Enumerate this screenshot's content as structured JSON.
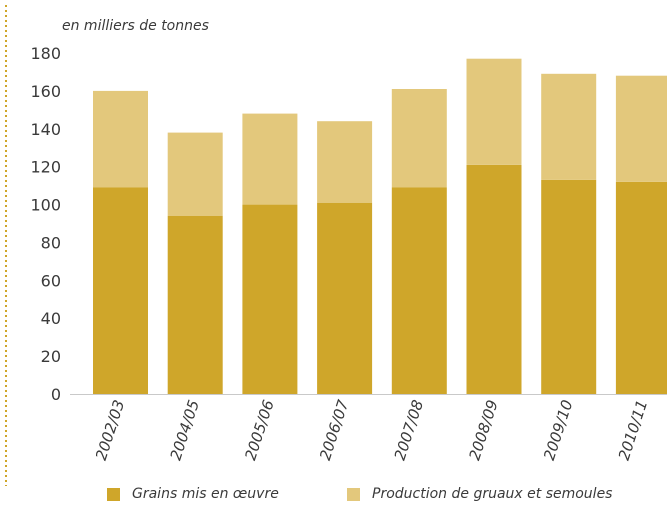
{
  "chart_data": {
    "type": "bar",
    "stacked": true,
    "unit_label": "en milliers de tonnes",
    "categories": [
      "2002/03",
      "2004/05",
      "2005/06",
      "2006/07",
      "2007/08",
      "2008/09",
      "2009/10",
      "2010/11"
    ],
    "series": [
      {
        "name": "Grains mis en œuvre",
        "color": "#cfa62a",
        "values": [
          109,
          94,
          100,
          101,
          109,
          121,
          113,
          112
        ]
      },
      {
        "name": "Production de gruaux et semoules",
        "color": "#e3c87c",
        "values": [
          51,
          44,
          48,
          43,
          52,
          56,
          56,
          56
        ]
      }
    ],
    "yticks": [
      0,
      20,
      40,
      60,
      80,
      100,
      120,
      140,
      160,
      180
    ],
    "ylim": [
      0,
      180
    ],
    "grid": false,
    "legend_position": "bottom"
  }
}
